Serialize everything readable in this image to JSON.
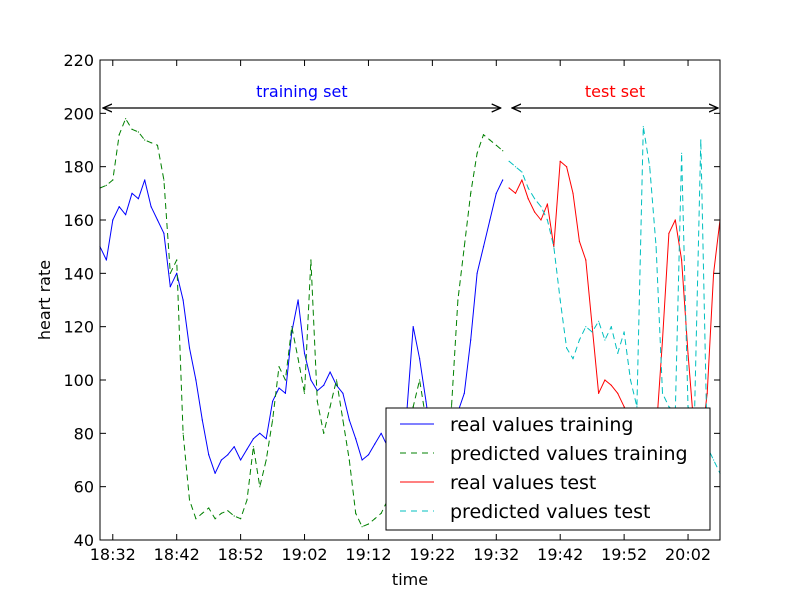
{
  "chart_data": {
    "type": "line",
    "xlabel": "time",
    "ylabel": "heart rate",
    "x_range": [
      "18:30",
      "20:07"
    ],
    "ylim": [
      40,
      220
    ],
    "x_ticks": [
      "18:32",
      "18:42",
      "18:52",
      "19:02",
      "19:12",
      "19:22",
      "19:32",
      "19:42",
      "19:52",
      "20:02"
    ],
    "y_ticks": [
      40,
      60,
      80,
      100,
      120,
      140,
      160,
      180,
      200,
      220
    ],
    "grid": false,
    "legend_position": "lower-right",
    "annotations": [
      {
        "text": "training set",
        "color": "#0000ff",
        "x_start": "18:30",
        "x_end": "19:33"
      },
      {
        "text": "test set",
        "color": "#ff0000",
        "x_start": "19:34",
        "x_end": "20:07"
      }
    ],
    "series": [
      {
        "name": "real values training",
        "color": "#0000ff",
        "style": "solid",
        "x": [
          "18:30",
          "18:31",
          "18:32",
          "18:33",
          "18:34",
          "18:35",
          "18:36",
          "18:37",
          "18:38",
          "18:39",
          "18:40",
          "18:41",
          "18:42",
          "18:43",
          "18:44",
          "18:45",
          "18:46",
          "18:47",
          "18:48",
          "18:49",
          "18:50",
          "18:51",
          "18:52",
          "18:53",
          "18:54",
          "18:55",
          "18:56",
          "18:57",
          "18:58",
          "18:59",
          "19:00",
          "19:01",
          "19:02",
          "19:03",
          "19:04",
          "19:05",
          "19:06",
          "19:07",
          "19:08",
          "19:09",
          "19:10",
          "19:11",
          "19:12",
          "19:13",
          "19:14",
          "19:15",
          "19:16",
          "19:17",
          "19:18",
          "19:19",
          "19:20",
          "19:21",
          "19:22",
          "19:23",
          "19:24",
          "19:25",
          "19:26",
          "19:27",
          "19:28",
          "19:29",
          "19:30",
          "19:31",
          "19:32",
          "19:33"
        ],
        "values": [
          150,
          145,
          160,
          165,
          162,
          170,
          168,
          175,
          165,
          160,
          155,
          135,
          140,
          130,
          112,
          100,
          85,
          72,
          65,
          70,
          72,
          75,
          70,
          74,
          78,
          80,
          78,
          92,
          97,
          95,
          118,
          130,
          110,
          100,
          96,
          98,
          103,
          98,
          95,
          85,
          78,
          70,
          72,
          76,
          80,
          75,
          70,
          60,
          88,
          120,
          108,
          92,
          75,
          80,
          76,
          82,
          88,
          95,
          115,
          140,
          150,
          160,
          170,
          175
        ]
      },
      {
        "name": "predicted values training",
        "color": "#008000",
        "style": "dashed",
        "x": [
          "18:30",
          "18:31",
          "18:32",
          "18:33",
          "18:34",
          "18:35",
          "18:36",
          "18:37",
          "18:38",
          "18:39",
          "18:40",
          "18:41",
          "18:42",
          "18:43",
          "18:44",
          "18:45",
          "18:46",
          "18:47",
          "18:48",
          "18:49",
          "18:50",
          "18:51",
          "18:52",
          "18:53",
          "18:54",
          "18:55",
          "18:56",
          "18:57",
          "18:58",
          "18:59",
          "19:00",
          "19:01",
          "19:02",
          "19:03",
          "19:04",
          "19:05",
          "19:06",
          "19:07",
          "19:08",
          "19:09",
          "19:10",
          "19:11",
          "19:12",
          "19:13",
          "19:14",
          "19:15",
          "19:16",
          "19:17",
          "19:18",
          "19:19",
          "19:20",
          "19:21",
          "19:22",
          "19:23",
          "19:24",
          "19:25",
          "19:26",
          "19:27",
          "19:28",
          "19:29",
          "19:30",
          "19:31",
          "19:32",
          "19:33"
        ],
        "values": [
          172,
          173,
          175,
          192,
          198,
          194,
          193,
          190,
          189,
          188,
          175,
          140,
          145,
          80,
          55,
          48,
          50,
          52,
          48,
          50,
          51,
          49,
          48,
          55,
          75,
          60,
          70,
          85,
          105,
          100,
          120,
          108,
          95,
          145,
          92,
          80,
          90,
          100,
          85,
          70,
          50,
          45,
          46,
          48,
          50,
          55,
          48,
          52,
          70,
          90,
          100,
          85,
          60,
          68,
          85,
          90,
          130,
          150,
          170,
          185,
          192,
          190,
          188,
          186
        ]
      },
      {
        "name": "real values test",
        "color": "#ff0000",
        "style": "solid",
        "x": [
          "19:34",
          "19:35",
          "19:36",
          "19:37",
          "19:38",
          "19:39",
          "19:40",
          "19:41",
          "19:42",
          "19:43",
          "19:44",
          "19:45",
          "19:46",
          "19:47",
          "19:48",
          "19:49",
          "19:50",
          "19:51",
          "19:52",
          "19:53",
          "19:54",
          "19:55",
          "19:56",
          "19:57",
          "19:58",
          "19:59",
          "20:00",
          "20:01",
          "20:02",
          "20:03",
          "20:04",
          "20:05",
          "20:06",
          "20:07"
        ],
        "values": [
          172,
          170,
          175,
          168,
          163,
          160,
          166,
          150,
          182,
          180,
          170,
          152,
          145,
          120,
          95,
          100,
          98,
          95,
          90,
          85,
          70,
          72,
          78,
          80,
          115,
          155,
          160,
          145,
          110,
          80,
          75,
          95,
          140,
          160
        ]
      },
      {
        "name": "predicted values test",
        "color": "#00bfbf",
        "style": "dashed",
        "x": [
          "19:34",
          "19:35",
          "19:36",
          "19:37",
          "19:38",
          "19:39",
          "19:40",
          "19:41",
          "19:42",
          "19:43",
          "19:44",
          "19:45",
          "19:46",
          "19:47",
          "19:48",
          "19:49",
          "19:50",
          "19:51",
          "19:52",
          "19:53",
          "19:54",
          "19:55",
          "19:56",
          "19:57",
          "19:58",
          "19:59",
          "20:00",
          "20:01",
          "20:02",
          "20:03",
          "20:04",
          "20:05",
          "20:06",
          "20:07"
        ],
        "values": [
          182,
          180,
          178,
          172,
          168,
          165,
          160,
          150,
          130,
          112,
          108,
          115,
          120,
          118,
          122,
          115,
          120,
          110,
          118,
          100,
          90,
          195,
          180,
          150,
          95,
          90,
          88,
          185,
          90,
          85,
          190,
          75,
          70,
          65
        ]
      }
    ]
  }
}
